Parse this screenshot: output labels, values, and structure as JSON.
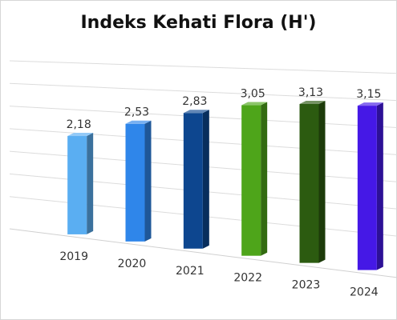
{
  "chart_data": {
    "type": "bar",
    "title": "Indeks Kehati Flora (H')",
    "xlabel": "",
    "ylabel": "",
    "categories": [
      "2019",
      "2020",
      "2021",
      "2022",
      "2023",
      "2024"
    ],
    "values": [
      2.18,
      2.53,
      2.83,
      3.05,
      3.13,
      3.15
    ],
    "value_labels": [
      "2,18",
      "2,53",
      "2,83",
      "3,05",
      "3,13",
      "3,15"
    ],
    "bar_colors": [
      "#5aaef2",
      "#2f86ea",
      "#0d468f",
      "#4ea51a",
      "#2c5b10",
      "#4518e6"
    ],
    "ylim": [
      0,
      3.6
    ],
    "grid": true,
    "legend": "none",
    "perspective": "3d"
  }
}
